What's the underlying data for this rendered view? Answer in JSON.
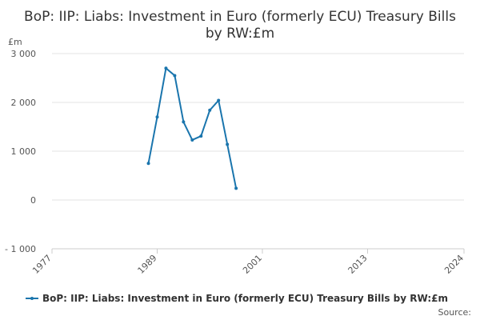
{
  "chart_data": {
    "type": "line",
    "title": "BoP: IIP: Liabs: Investment in Euro (formerly ECU) Treasury Bills by RW:£m",
    "y_label": "£m",
    "source": "Source:",
    "x": [
      1988,
      1989,
      1990,
      1991,
      1992,
      1993,
      1994,
      1995,
      1996,
      1997,
      1998
    ],
    "series": [
      {
        "name": "BoP: IIP: Liabs: Investment in Euro (formerly ECU) Treasury Bills by RW:£m",
        "color": "#1a75ad",
        "values": [
          750,
          1700,
          2700,
          2550,
          1600,
          1230,
          1310,
          1840,
          2040,
          1140,
          240
        ]
      }
    ],
    "xlim": [
      1977,
      2024
    ],
    "xticks": [
      1977,
      1989,
      2001,
      2013,
      2024
    ],
    "ylim": [
      -1000,
      3000
    ],
    "yticks": [
      {
        "value": -1000,
        "label": "- 1 000"
      },
      0,
      {
        "value": 1000,
        "label": "1 000"
      },
      {
        "value": 2000,
        "label": "2 000"
      },
      {
        "value": 3000,
        "label": "3 000"
      }
    ],
    "grid": true,
    "legend": "bottom"
  }
}
